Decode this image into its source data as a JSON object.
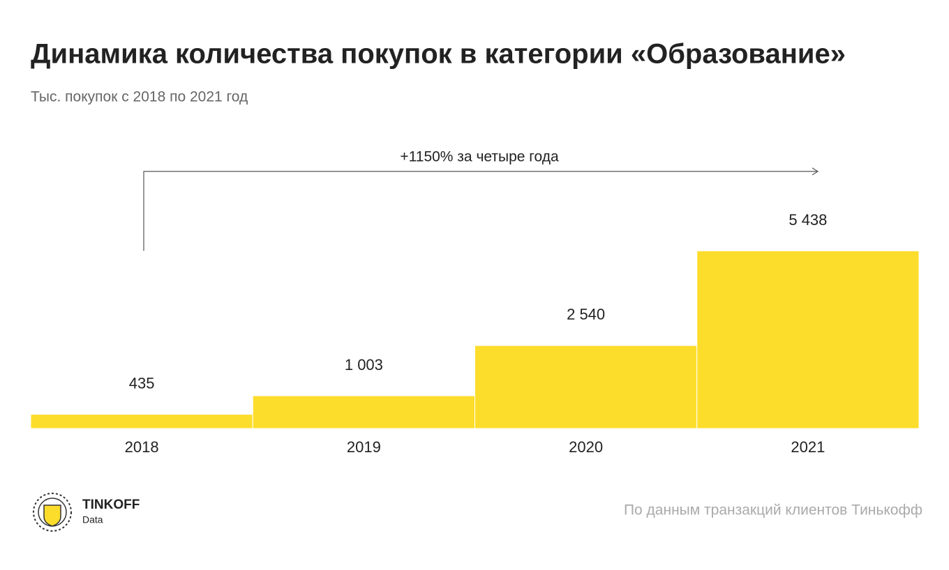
{
  "chart_data": {
    "type": "bar",
    "title": "Динамика количества покупок в категории «Образование»",
    "subtitle": "Тыс. покупок с 2018 по 2021 год",
    "annotation": "+1150% за четыре года",
    "categories": [
      "2018",
      "2019",
      "2020",
      "2021"
    ],
    "values": [
      435,
      1003,
      2540,
      5438
    ],
    "value_labels": [
      "435",
      "1 003",
      "2 540",
      "5 438"
    ],
    "color": "#fddd2c",
    "source": "По данным транзакций клиентов Тинькофф",
    "logo": {
      "name": "TINKOFF",
      "sub": "Data"
    }
  }
}
